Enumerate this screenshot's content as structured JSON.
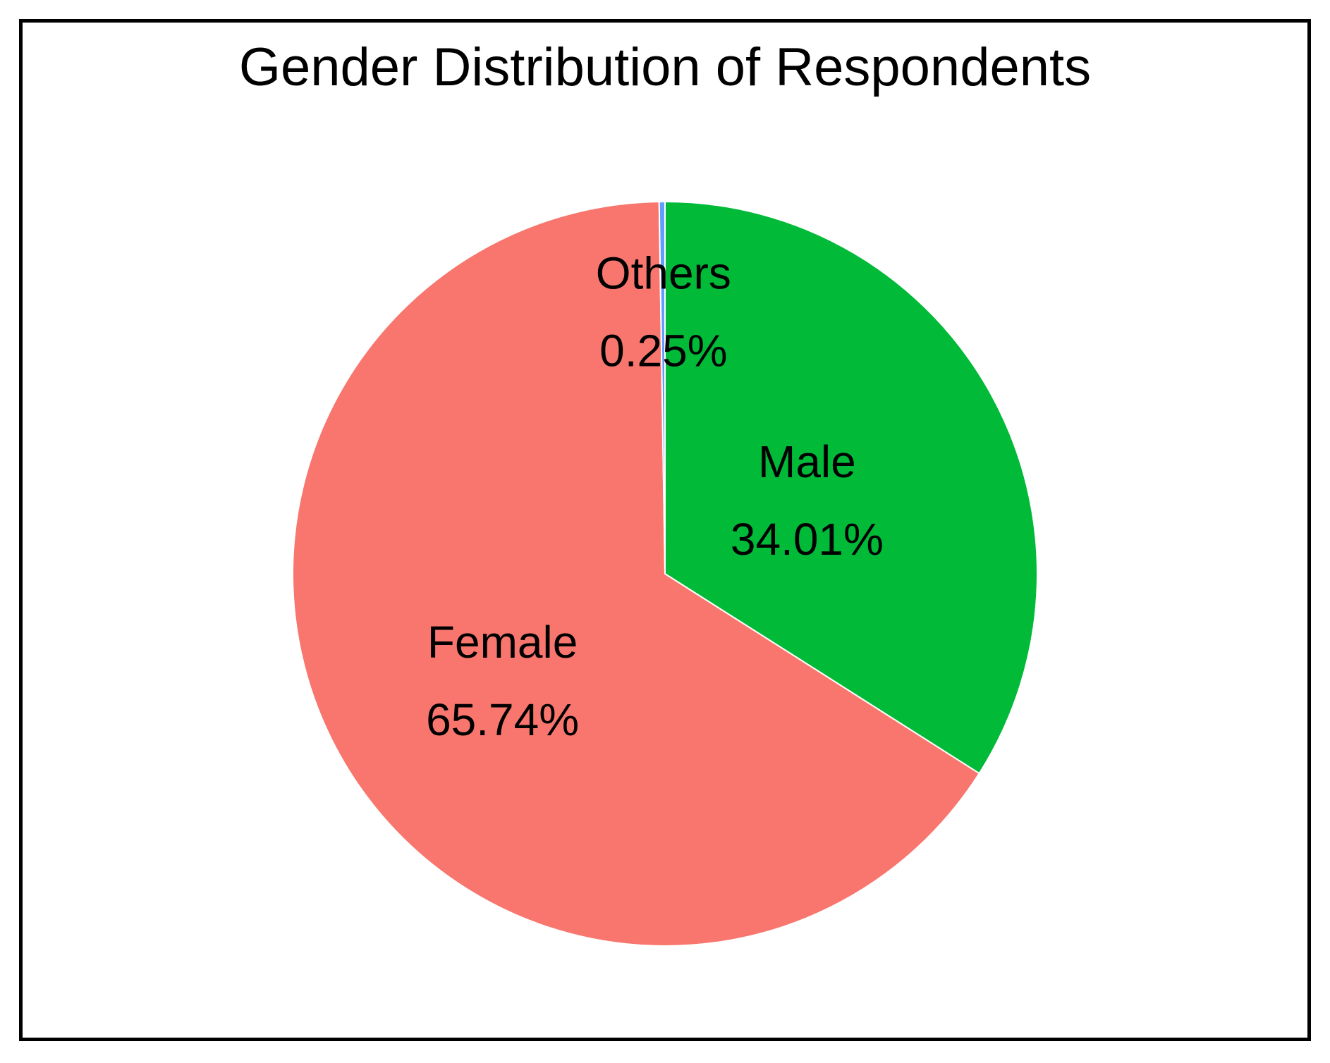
{
  "chart_data": {
    "type": "pie",
    "title": "Gender Distribution of Respondents",
    "slices": [
      {
        "label": "Male",
        "percent_label": "34.01%",
        "value": 34.01,
        "color": "#00BA38"
      },
      {
        "label": "Female",
        "percent_label": "65.74%",
        "value": 65.74,
        "color": "#F8766D"
      },
      {
        "label": "Others",
        "percent_label": "0.25%",
        "value": 0.25,
        "color": "#619CFF"
      }
    ],
    "start_angle": "12 o'clock",
    "direction": "clockwise",
    "legend": "none",
    "slice_border_color": "#FFFFFF"
  }
}
